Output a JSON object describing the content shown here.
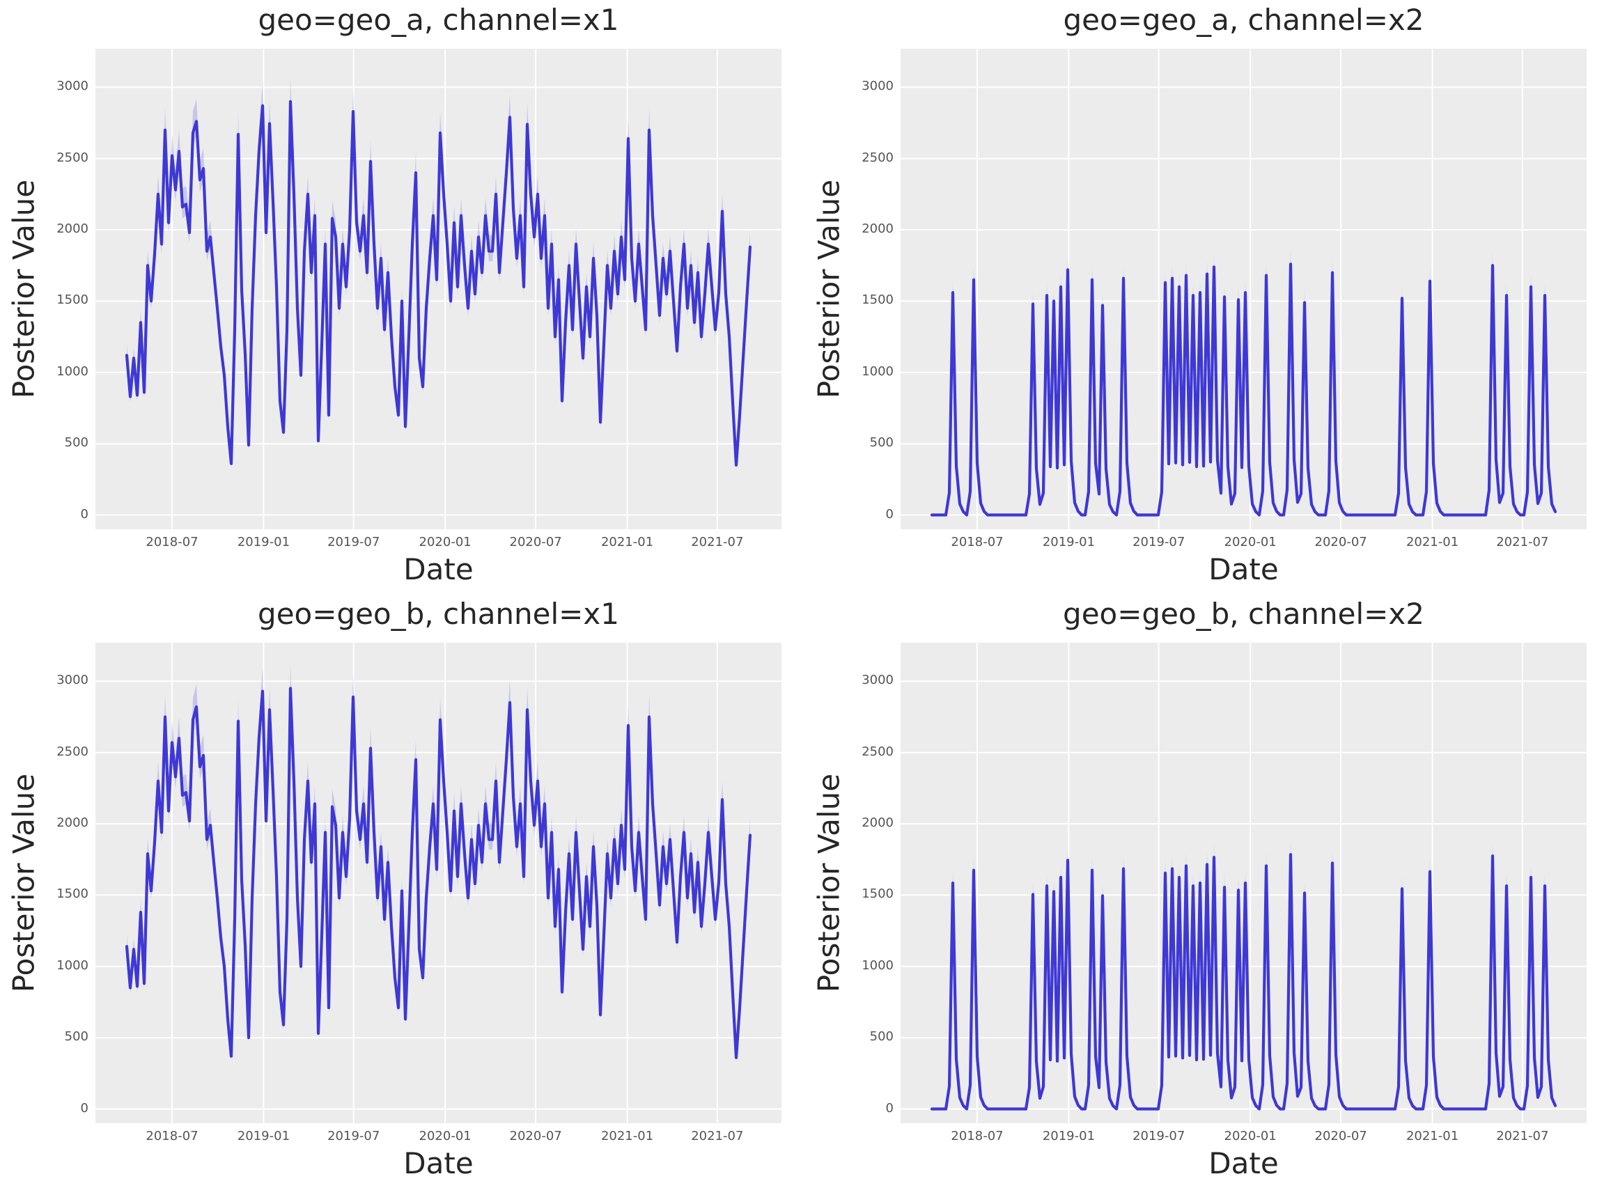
{
  "style": {
    "figure_background": "#ffffff",
    "axes_background": "#ececec",
    "grid_color": "#ffffff",
    "line_color": "#3e38d5",
    "band_color": "rgba(72,64,214,0.22)",
    "title_color": "#262626",
    "label_color": "#262626",
    "tick_color": "#545454"
  },
  "chart_data": [
    {
      "type": "line",
      "title": "geo=geo_a, channel=x1",
      "geo": "geo_a",
      "channel": "x1",
      "xlabel": "Date",
      "ylabel": "Posterior Value",
      "grid": true,
      "legend": "none",
      "xlim": [
        "2018-01-28",
        "2021-11-07"
      ],
      "ylim": [
        -100,
        3270
      ],
      "y_ticks": [
        0,
        500,
        1000,
        1500,
        2000,
        2500,
        3000
      ],
      "x_ticks": [
        {
          "date": "2018-07-01",
          "label": "2018-07"
        },
        {
          "date": "2019-01-01",
          "label": "2019-01"
        },
        {
          "date": "2019-07-01",
          "label": "2019-07"
        },
        {
          "date": "2020-01-01",
          "label": "2020-01"
        },
        {
          "date": "2020-07-01",
          "label": "2020-07"
        },
        {
          "date": "2021-01-01",
          "label": "2021-01"
        },
        {
          "date": "2021-07-01",
          "label": "2021-07"
        }
      ],
      "x_start": "2018-04-01",
      "x_step_days": 7,
      "band": {
        "upper_factor": 1.05,
        "upper_add": 20,
        "lower_factor": 0.97,
        "lower_add": -15
      },
      "values": [
        1120,
        830,
        1100,
        840,
        1350,
        860,
        1750,
        1500,
        1830,
        2250,
        1900,
        2700,
        2050,
        2520,
        2280,
        2550,
        2160,
        2180,
        1980,
        2680,
        2760,
        2350,
        2430,
        1850,
        1950,
        1700,
        1450,
        1180,
        980,
        620,
        360,
        1300,
        2670,
        1580,
        1130,
        490,
        1450,
        2100,
        2560,
        2870,
        1980,
        2745,
        2200,
        1600,
        800,
        580,
        1300,
        2900,
        2250,
        1450,
        980,
        1850,
        2250,
        1700,
        2100,
        520,
        1200,
        1900,
        700,
        2080,
        1950,
        1450,
        1900,
        1600,
        2000,
        2830,
        2050,
        1850,
        2100,
        1700,
        2480,
        1900,
        1450,
        1800,
        1300,
        1700,
        1250,
        900,
        700,
        1500,
        620,
        1250,
        1900,
        2400,
        1100,
        900,
        1450,
        1800,
        2100,
        1650,
        2680,
        2250,
        1900,
        1500,
        2050,
        1600,
        2100,
        1750,
        1450,
        1850,
        1550,
        1950,
        1700,
        2100,
        1850,
        1850,
        2250,
        1700,
        2050,
        2400,
        2790,
        2150,
        1800,
        2100,
        1600,
        2740,
        2250,
        1950,
        2250,
        1800,
        2100,
        1450,
        1900,
        1250,
        1650,
        800,
        1350,
        1750,
        1300,
        1900,
        1500,
        1100,
        1600,
        1250,
        1800,
        1400,
        650,
        1200,
        1750,
        1450,
        1850,
        1550,
        1950,
        1650,
        2640,
        1800,
        1500,
        1900,
        1600,
        1300,
        2700,
        2100,
        1750,
        1400,
        1800,
        1550,
        1850,
        1500,
        1150,
        1600,
        1900,
        1450,
        1750,
        1350,
        1700,
        1250,
        1550,
        1900,
        1600,
        1300,
        1560,
        2130,
        1550,
        1250,
        790,
        350,
        700,
        1100,
        1500,
        1880
      ]
    },
    {
      "type": "line",
      "title": "geo=geo_a, channel=x2",
      "geo": "geo_a",
      "channel": "x2",
      "xlabel": "Date",
      "ylabel": "Posterior Value",
      "grid": true,
      "legend": "none",
      "xlim": [
        "2018-01-28",
        "2021-11-07"
      ],
      "ylim": [
        -100,
        3270
      ],
      "y_ticks": [
        0,
        500,
        1000,
        1500,
        2000,
        2500,
        3000
      ],
      "x_ticks": [
        {
          "date": "2018-07-01",
          "label": "2018-07"
        },
        {
          "date": "2019-01-01",
          "label": "2019-01"
        },
        {
          "date": "2019-07-01",
          "label": "2019-07"
        },
        {
          "date": "2020-01-01",
          "label": "2020-01"
        },
        {
          "date": "2020-07-01",
          "label": "2020-07"
        },
        {
          "date": "2021-01-01",
          "label": "2021-01"
        },
        {
          "date": "2021-07-01",
          "label": "2021-07"
        }
      ],
      "x_start": "2018-04-01",
      "x_step_days": 7,
      "n_points": 180,
      "baseline": 0,
      "band": {
        "upper_factor": 1.055,
        "upper_add": 4,
        "lower_factor": 0.985,
        "lower_add": -2
      },
      "spike_profile": [
        [
          -1,
          0.1
        ],
        [
          0,
          1.0
        ],
        [
          1,
          0.22
        ],
        [
          2,
          0.05
        ],
        [
          3,
          0.015
        ]
      ],
      "spikes": [
        [
          "2018-05-13",
          1560
        ],
        [
          "2018-06-24",
          1650
        ],
        [
          "2018-10-21",
          1480
        ],
        [
          "2018-11-18",
          1540
        ],
        [
          "2018-12-02",
          1500
        ],
        [
          "2018-12-16",
          1600
        ],
        [
          "2018-12-30",
          1720
        ],
        [
          "2019-02-17",
          1650
        ],
        [
          "2019-03-10",
          1470
        ],
        [
          "2019-04-21",
          1660
        ],
        [
          "2019-07-14",
          1630
        ],
        [
          "2019-07-28",
          1660
        ],
        [
          "2019-08-11",
          1600
        ],
        [
          "2019-08-25",
          1680
        ],
        [
          "2019-09-08",
          1540
        ],
        [
          "2019-09-22",
          1560
        ],
        [
          "2019-10-06",
          1690
        ],
        [
          "2019-10-20",
          1740
        ],
        [
          "2019-11-10",
          1530
        ],
        [
          "2019-12-08",
          1510
        ],
        [
          "2019-12-22",
          1560
        ],
        [
          "2020-02-02",
          1680
        ],
        [
          "2020-03-22",
          1760
        ],
        [
          "2020-04-19",
          1490
        ],
        [
          "2020-06-14",
          1700
        ],
        [
          "2020-11-01",
          1520
        ],
        [
          "2020-12-27",
          1640
        ],
        [
          "2021-05-02",
          1750
        ],
        [
          "2021-05-30",
          1540
        ],
        [
          "2021-07-18",
          1600
        ],
        [
          "2021-08-15",
          1540
        ]
      ]
    },
    {
      "type": "line",
      "title": "geo=geo_b, channel=x1",
      "geo": "geo_b",
      "channel": "x1",
      "xlabel": "Date",
      "ylabel": "Posterior Value",
      "grid": true,
      "legend": "none",
      "xlim": [
        "2018-01-28",
        "2021-11-07"
      ],
      "ylim": [
        -100,
        3270
      ],
      "y_ticks": [
        0,
        500,
        1000,
        1500,
        2000,
        2500,
        3000
      ],
      "x_ticks": [
        {
          "date": "2018-07-01",
          "label": "2018-07"
        },
        {
          "date": "2019-01-01",
          "label": "2019-01"
        },
        {
          "date": "2019-07-01",
          "label": "2019-07"
        },
        {
          "date": "2020-01-01",
          "label": "2020-01"
        },
        {
          "date": "2020-07-01",
          "label": "2020-07"
        },
        {
          "date": "2021-01-01",
          "label": "2021-01"
        },
        {
          "date": "2021-07-01",
          "label": "2021-07"
        }
      ],
      "x_start": "2018-04-01",
      "x_step_days": 7,
      "band": {
        "upper_factor": 1.05,
        "upper_add": 20,
        "lower_factor": 0.97,
        "lower_add": -15
      },
      "values": [
        1140,
        850,
        1120,
        860,
        1380,
        880,
        1790,
        1530,
        1870,
        2300,
        1940,
        2750,
        2090,
        2570,
        2330,
        2600,
        2200,
        2220,
        2020,
        2730,
        2820,
        2400,
        2480,
        1890,
        1990,
        1730,
        1480,
        1200,
        1000,
        630,
        370,
        1330,
        2720,
        1610,
        1150,
        500,
        1480,
        2140,
        2610,
        2930,
        2020,
        2800,
        2240,
        1630,
        820,
        590,
        1330,
        2950,
        2300,
        1480,
        1000,
        1890,
        2300,
        1730,
        2140,
        530,
        1220,
        1940,
        710,
        2120,
        1990,
        1480,
        1940,
        1630,
        2040,
        2890,
        2090,
        1890,
        2140,
        1730,
        2530,
        1940,
        1480,
        1840,
        1330,
        1730,
        1280,
        920,
        710,
        1530,
        630,
        1280,
        1940,
        2450,
        1120,
        920,
        1480,
        1840,
        2140,
        1680,
        2730,
        2300,
        1940,
        1530,
        2090,
        1630,
        2140,
        1790,
        1480,
        1890,
        1580,
        1990,
        1730,
        2140,
        1890,
        1890,
        2300,
        1730,
        2090,
        2450,
        2850,
        2190,
        1840,
        2140,
        1630,
        2800,
        2300,
        1990,
        2300,
        1840,
        2140,
        1480,
        1940,
        1280,
        1680,
        820,
        1380,
        1790,
        1330,
        1940,
        1530,
        1120,
        1630,
        1280,
        1840,
        1430,
        660,
        1220,
        1790,
        1480,
        1890,
        1580,
        1990,
        1680,
        2690,
        1840,
        1530,
        1940,
        1630,
        1330,
        2750,
        2140,
        1790,
        1430,
        1840,
        1580,
        1890,
        1530,
        1170,
        1630,
        1940,
        1480,
        1790,
        1380,
        1730,
        1280,
        1580,
        1940,
        1630,
        1330,
        1590,
        2170,
        1580,
        1280,
        810,
        360,
        710,
        1120,
        1530,
        1920
      ]
    },
    {
      "type": "line",
      "title": "geo=geo_b, channel=x2",
      "geo": "geo_b",
      "channel": "x2",
      "xlabel": "Date",
      "ylabel": "Posterior Value",
      "grid": true,
      "legend": "none",
      "xlim": [
        "2018-01-28",
        "2021-11-07"
      ],
      "ylim": [
        -100,
        3270
      ],
      "y_ticks": [
        0,
        500,
        1000,
        1500,
        2000,
        2500,
        3000
      ],
      "x_ticks": [
        {
          "date": "2018-07-01",
          "label": "2018-07"
        },
        {
          "date": "2019-01-01",
          "label": "2019-01"
        },
        {
          "date": "2019-07-01",
          "label": "2019-07"
        },
        {
          "date": "2020-01-01",
          "label": "2020-01"
        },
        {
          "date": "2020-07-01",
          "label": "2020-07"
        },
        {
          "date": "2021-01-01",
          "label": "2021-01"
        },
        {
          "date": "2021-07-01",
          "label": "2021-07"
        }
      ],
      "x_start": "2018-04-01",
      "x_step_days": 7,
      "n_points": 180,
      "baseline": 0,
      "band": {
        "upper_factor": 1.055,
        "upper_add": 4,
        "lower_factor": 0.985,
        "lower_add": -2
      },
      "spike_profile": [
        [
          -1,
          0.1
        ],
        [
          0,
          1.0
        ],
        [
          1,
          0.22
        ],
        [
          2,
          0.05
        ],
        [
          3,
          0.015
        ]
      ],
      "spikes": [
        [
          "2018-05-13",
          1585
        ],
        [
          "2018-06-24",
          1675
        ],
        [
          "2018-10-21",
          1505
        ],
        [
          "2018-11-18",
          1565
        ],
        [
          "2018-12-02",
          1525
        ],
        [
          "2018-12-16",
          1625
        ],
        [
          "2018-12-30",
          1745
        ],
        [
          "2019-02-17",
          1675
        ],
        [
          "2019-03-10",
          1495
        ],
        [
          "2019-04-21",
          1685
        ],
        [
          "2019-07-14",
          1655
        ],
        [
          "2019-07-28",
          1685
        ],
        [
          "2019-08-11",
          1625
        ],
        [
          "2019-08-25",
          1705
        ],
        [
          "2019-09-08",
          1565
        ],
        [
          "2019-09-22",
          1585
        ],
        [
          "2019-10-06",
          1715
        ],
        [
          "2019-10-20",
          1765
        ],
        [
          "2019-11-10",
          1555
        ],
        [
          "2019-12-08",
          1535
        ],
        [
          "2019-12-22",
          1585
        ],
        [
          "2020-02-02",
          1705
        ],
        [
          "2020-03-22",
          1785
        ],
        [
          "2020-04-19",
          1515
        ],
        [
          "2020-06-14",
          1725
        ],
        [
          "2020-11-01",
          1545
        ],
        [
          "2020-12-27",
          1665
        ],
        [
          "2021-05-02",
          1775
        ],
        [
          "2021-05-30",
          1565
        ],
        [
          "2021-07-18",
          1625
        ],
        [
          "2021-08-15",
          1565
        ]
      ]
    }
  ]
}
